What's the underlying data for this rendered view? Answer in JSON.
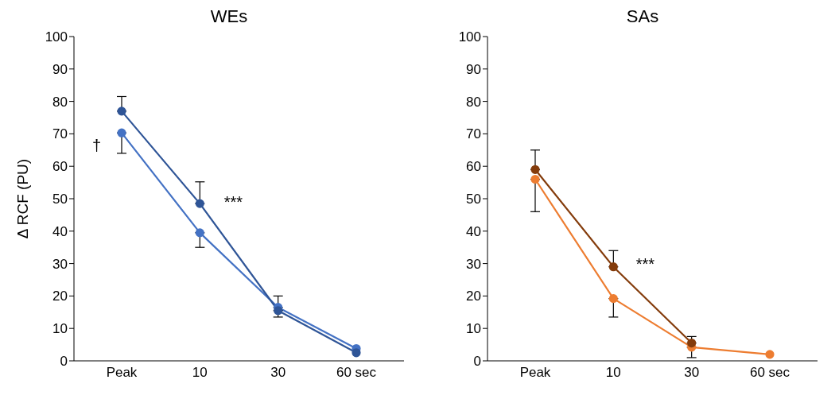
{
  "chart_data": [
    {
      "type": "line",
      "title": "WEs",
      "ylabel": "Δ RCF (PU)",
      "categories": [
        "Peak",
        "10",
        "30",
        "60 sec"
      ],
      "ylim": [
        0,
        100
      ],
      "yticks": [
        0,
        10,
        20,
        30,
        40,
        50,
        60,
        70,
        80,
        90,
        100
      ],
      "grid": false,
      "legend": false,
      "marker": "circle",
      "series": [
        {
          "color": "#2f5597",
          "values": [
            77,
            48.5,
            15.5,
            2.5
          ],
          "errors": [
            [
              77,
              81.5
            ],
            [
              48.5,
              55.2
            ],
            [
              15.5,
              20
            ],
            null
          ]
        },
        {
          "color": "#4472c4",
          "values": [
            70.3,
            39.5,
            16.5,
            3.8
          ],
          "errors": [
            [
              64,
              70.3
            ],
            [
              35,
              39.5
            ],
            [
              13.5,
              16.5
            ],
            null
          ]
        }
      ],
      "annotations": [
        "†",
        {
          "text": "***",
          "x": "10",
          "y": 49
        }
      ]
    },
    {
      "type": "line",
      "title": "SAs",
      "categories": [
        "Peak",
        "10",
        "30",
        "60 sec"
      ],
      "ylim": [
        0,
        100
      ],
      "yticks": [
        0,
        10,
        20,
        30,
        40,
        50,
        60,
        70,
        80,
        90,
        100
      ],
      "grid": false,
      "legend": false,
      "marker": "circle",
      "series": [
        {
          "color": "#843c0c",
          "values": [
            59,
            29,
            5.5,
            null
          ],
          "errors": [
            [
              59,
              65
            ],
            [
              29,
              34
            ],
            [
              5.5,
              7.5
            ],
            null
          ]
        },
        {
          "color": "#ed7d31",
          "values": [
            56,
            19.2,
            4.2,
            2
          ],
          "errors": [
            [
              46,
              56
            ],
            [
              13.5,
              19.2
            ],
            [
              1,
              4.2
            ],
            null
          ]
        }
      ],
      "annotations": [
        {
          "text": "***",
          "x": "10",
          "y": 30
        }
      ]
    }
  ]
}
